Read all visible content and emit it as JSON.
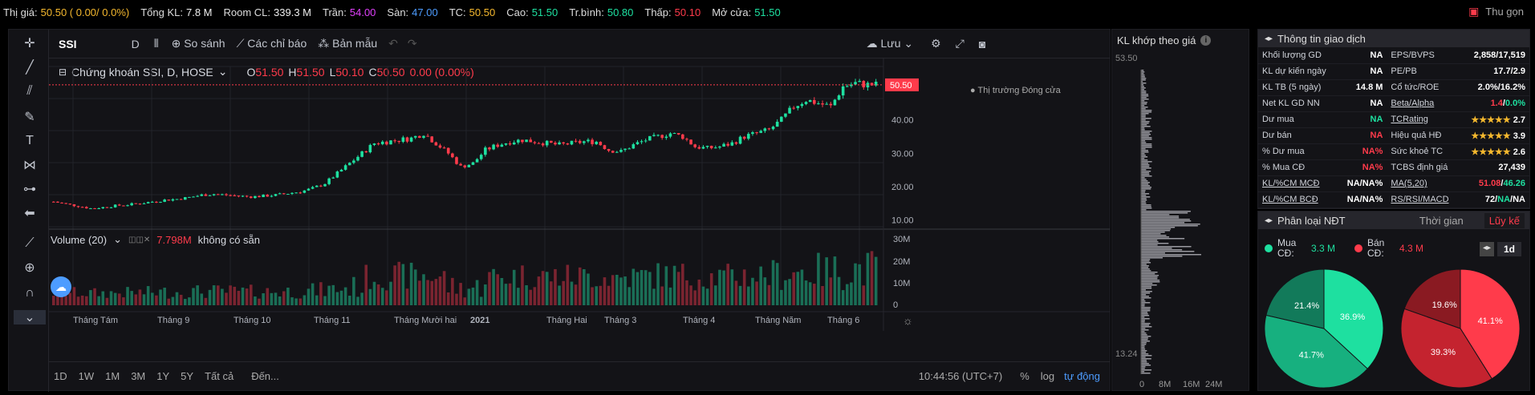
{
  "topbar": {
    "items": [
      {
        "label": "Thị giá:",
        "value": "50.50 ( 0.00/ 0.0%)",
        "color": "#f5b82e"
      },
      {
        "label": "Tổng KL:",
        "value": "7.8 M",
        "color": "#eeeeee"
      },
      {
        "label": "Room CL:",
        "value": "339.3 M",
        "color": "#eeeeee"
      },
      {
        "label": "Trần:",
        "value": "54.00",
        "color": "#e040fb"
      },
      {
        "label": "Sàn:",
        "value": "47.00",
        "color": "#4d9cff"
      },
      {
        "label": "TC:",
        "value": "50.50",
        "color": "#f5b82e"
      },
      {
        "label": "Cao:",
        "value": "51.50",
        "color": "#1ee0a0"
      },
      {
        "label": "Tr.bình:",
        "value": "50.80",
        "color": "#1ee0a0"
      },
      {
        "label": "Thấp:",
        "value": "50.10",
        "color": "#ff3b4b"
      },
      {
        "label": "Mở cửa:",
        "value": "51.50",
        "color": "#1ee0a0"
      }
    ],
    "collapse_label": "Thu gọn"
  },
  "toolbar": {
    "symbol": "SSI",
    "interval": "D",
    "compare": "So sánh",
    "indicators": "Các chỉ báo",
    "templates": "Bản mẫu",
    "save": "Lưu"
  },
  "legend": {
    "title": "Chứng khoán SSI, D, HOSE",
    "o": "51.50",
    "h": "51.50",
    "l": "50.10",
    "c": "50.50",
    "change": "0.00 (0.00%)",
    "market_status": "Thị trường Đóng cửa",
    "volume_label": "Volume (20)",
    "volume_value": "7.798M",
    "volume_na": "không có sẵn"
  },
  "bottombar": {
    "ranges": [
      "1D",
      "1W",
      "1M",
      "3M",
      "1Y",
      "5Y",
      "Tất cả"
    ],
    "goto": "Đến...",
    "time": "10:44:56 (UTC+7)",
    "percent": "%",
    "log": "log",
    "auto": "tự động"
  },
  "chart_data": {
    "type": "candlestick",
    "price_ticks": [
      "50.00",
      "40.00",
      "30.00",
      "20.00",
      "10.00"
    ],
    "last_price": "50.50",
    "volume_ticks": [
      "30M",
      "20M",
      "10M",
      "0"
    ],
    "x_labels": [
      "Tháng Tám",
      "Tháng 9",
      "Tháng 10",
      "Tháng 11",
      "Tháng Mười hai",
      "2021",
      "Tháng Hai",
      "Tháng 3",
      "Tháng 4",
      "Tháng Năm",
      "Tháng 6"
    ],
    "price_range": [
      9,
      55
    ],
    "close_trend": [
      15.5,
      14.8,
      14.2,
      13.5,
      13.8,
      14.3,
      14.6,
      15,
      15.5,
      16,
      16.3,
      16.8,
      17.5,
      17.8,
      17.5,
      17.2,
      17,
      17.2,
      17.5,
      18,
      18.5,
      19.5,
      21,
      24,
      27,
      30,
      33,
      33.5,
      34,
      34.5,
      36,
      33,
      30,
      26,
      27,
      31,
      32.5,
      33.5,
      34,
      33.5,
      33,
      32.5,
      33,
      33.5,
      33.5,
      31,
      30.5,
      32.5,
      34,
      35,
      36,
      35,
      32,
      31.5,
      32,
      33,
      35,
      36,
      37,
      40,
      44,
      46,
      45,
      44,
      50,
      51,
      50.5
    ]
  },
  "kl_panel": {
    "title": "KL khớp theo giá",
    "top_price": "53.50",
    "bottom_price": "13.24",
    "x_ticks": [
      "0",
      "8M",
      "16M",
      "24M"
    ]
  },
  "info_panel": {
    "title": "Thông tin giao dịch",
    "rows": [
      [
        "Khối lượng GD",
        "NA",
        "EPS/BVPS",
        "2,858/17,519"
      ],
      [
        "KL dự kiến ngày",
        "NA",
        "PE/PB",
        "17.7/2.9"
      ],
      [
        "KL TB (5 ngày)",
        "14.8 M",
        "Cổ tức/ROE",
        "2.0%/16.2%"
      ],
      [
        "Net KL GD NN",
        "NA",
        "Beta/Alpha",
        "1.4/0.0%"
      ],
      [
        "Dư mua",
        "NA",
        "TCRating",
        "★★★★★ 2.7"
      ],
      [
        "Dư bán",
        "NA",
        "Hiệu quả HĐ",
        "★★★★★ 3.9"
      ],
      [
        "% Dư mua",
        "NA%",
        "Sức khoẻ TC",
        "★★★★★ 2.6"
      ],
      [
        "% Mua CĐ",
        "NA%",
        "TCBS định giá",
        "27,439"
      ],
      [
        "KL/%CM MCĐ",
        "NA/NA%",
        "MA(5,20)",
        "51.08/46.26"
      ],
      [
        "KL/%CM BCĐ",
        "NA/NA%",
        "RS/RSI/MACD",
        "72/NA/NA"
      ]
    ]
  },
  "ndt_panel": {
    "title": "Phân loại NĐT",
    "tab_time": "Thời gian",
    "tab_cumulative": "Lũy kế",
    "buy_label": "Mua CĐ:",
    "buy_value": "3.3 M",
    "sell_label": "Bán CĐ:",
    "sell_value": "4.3 M",
    "period": "1d",
    "buy_pie": [
      36.9,
      41.7,
      21.4
    ],
    "buy_pie_labels": [
      "36.9%",
      "41.7%",
      "21.4%"
    ],
    "sell_pie": [
      41.1,
      39.3,
      19.6
    ],
    "sell_pie_labels": [
      "41.1%",
      "39.3%",
      "19.6%"
    ],
    "colors": {
      "up": "#1ee0a0",
      "down": "#ff3b4b"
    }
  }
}
